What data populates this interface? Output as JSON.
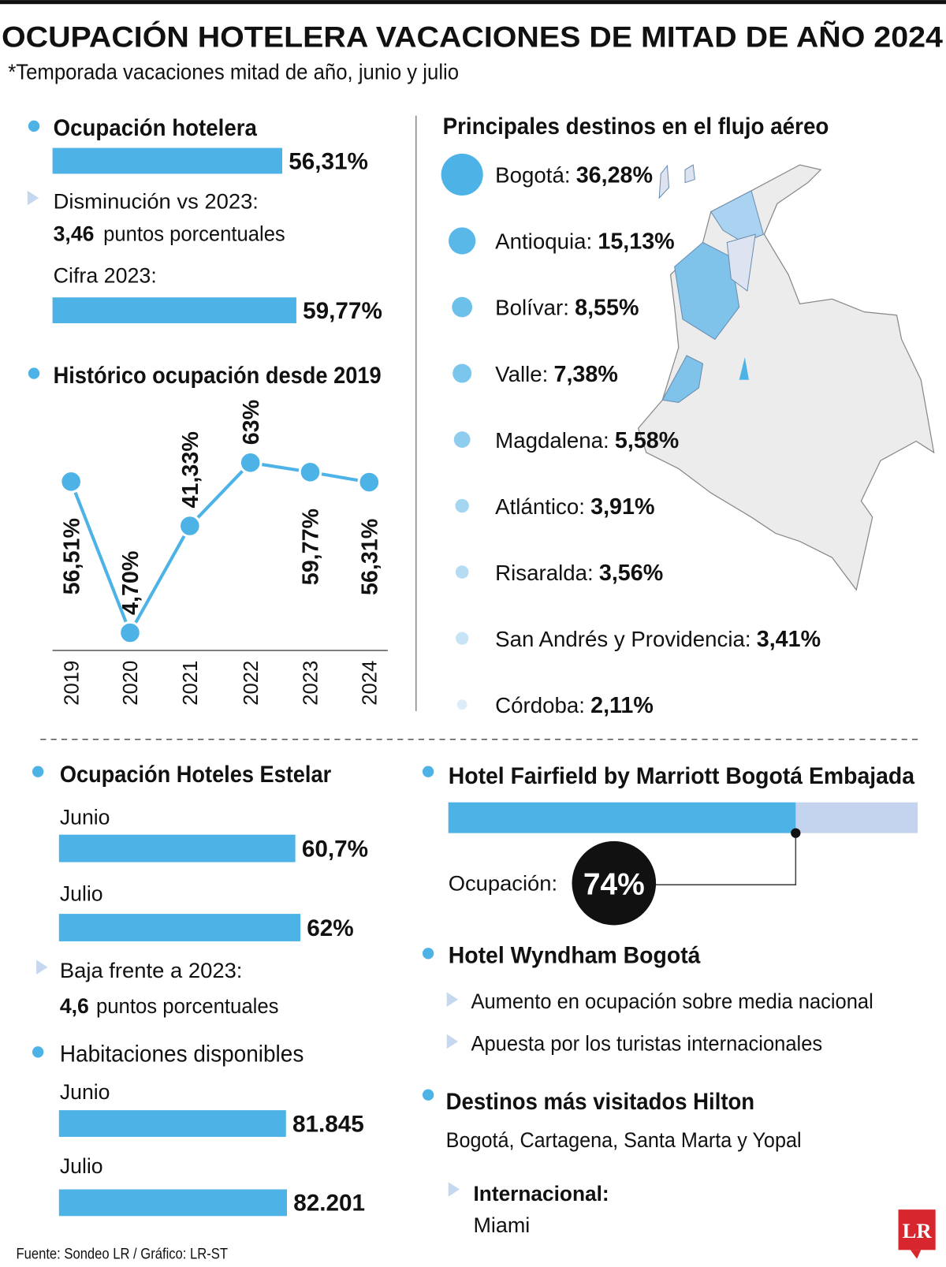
{
  "header": {
    "title": "OCUPACIÓN HOTELERA VACACIONES DE MITAD DE AÑO 2024",
    "subtitle": "*Temporada vacaciones mitad de año, junio y julio"
  },
  "chart_data": [
    {
      "type": "bar",
      "title": "Ocupación hotelera",
      "values": [
        56.31
      ],
      "value_labels": [
        "56,31%"
      ],
      "color": "#4db3e6"
    },
    {
      "type": "bar",
      "title": "Cifra 2023:",
      "values": [
        59.77
      ],
      "value_labels": [
        "59,77%"
      ],
      "color": "#4db3e6"
    },
    {
      "type": "line",
      "title": "Histórico ocupación desde 2019",
      "categories": [
        "2019",
        "2020",
        "2021",
        "2022",
        "2023",
        "2024"
      ],
      "values": [
        56.51,
        4.7,
        41.33,
        63,
        59.77,
        56.31
      ],
      "value_labels": [
        "56,51%",
        "4,70%",
        "41,33%",
        "63%",
        "59,77%",
        "56,31%"
      ],
      "color": "#4db3e6"
    },
    {
      "type": "bubble",
      "title": "Principales destinos en el flujo aéreo",
      "categories": [
        "Bogotá:",
        "Antioquia:",
        "Bolívar:",
        "Valle:",
        "Magdalena:",
        "Atlántico:",
        "Risaralda:",
        "San Andrés y Providencia:",
        "Córdoba:"
      ],
      "values": [
        36.28,
        15.13,
        8.55,
        7.38,
        5.58,
        3.91,
        3.56,
        3.41,
        2.11
      ],
      "value_labels": [
        "36,28%",
        "15,13%",
        "8,55%",
        "7,38%",
        "5,58%",
        "3,91%",
        "3,56%",
        "3,41%",
        "2,11%"
      ],
      "colors": [
        "#4db3e6",
        "#5ab8e8",
        "#6cc0ea",
        "#7bc6ec",
        "#8fcdef",
        "#a5d6f1",
        "#b5dcf3",
        "#c7e4f6",
        "#dcedf9"
      ]
    },
    {
      "type": "bar",
      "title": "Ocupación Hoteles Estelar",
      "categories": [
        "Junio",
        "Julio"
      ],
      "values": [
        60.7,
        62
      ],
      "value_labels": [
        "60,7%",
        "62%"
      ],
      "color": "#4db3e6"
    },
    {
      "type": "bar",
      "title": "Habitaciones disponibles",
      "categories": [
        "Junio",
        "Julio"
      ],
      "values": [
        81845,
        82201
      ],
      "value_labels": [
        "81.845",
        "82.201"
      ],
      "color": "#4db3e6"
    },
    {
      "type": "progress",
      "title": "Hotel Fairfield by Marriott Bogotá Embajada",
      "label": "Ocupación:",
      "value": 74,
      "value_label": "74%",
      "color": "#4db3e6",
      "track_color": "#c5d4ee"
    }
  ],
  "notes": {
    "decrease": {
      "label": "Disminución vs 2023:",
      "value": "3,46",
      "unit": "puntos porcentuales"
    },
    "estelar_drop": {
      "label": "Baja frente a 2023:",
      "value": "4,6",
      "unit": "puntos porcentuales"
    },
    "wyndham": {
      "title": "Hotel Wyndham Bogotá",
      "items": [
        "Aumento en ocupación sobre media nacional",
        "Apuesta por los turistas internacionales"
      ]
    },
    "hilton": {
      "title": "Destinos más visitados Hilton",
      "text": "Bogotá, Cartagena, Santa Marta y Yopal",
      "intl_label": "Internacional:",
      "intl_value": "Miami"
    }
  },
  "footer": {
    "source": "Fuente: Sondeo LR / Gráfico: LR-ST",
    "logo": "LR"
  }
}
